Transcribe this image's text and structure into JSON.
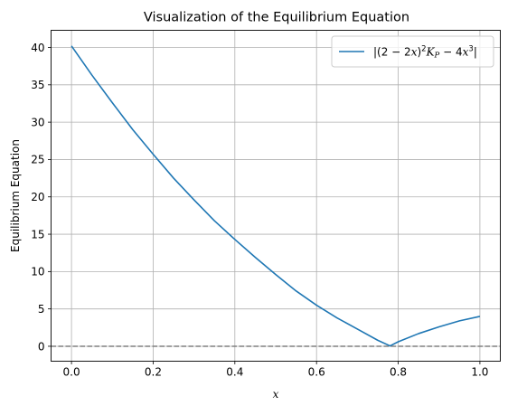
{
  "chart_data": {
    "type": "line",
    "title": "Visualization of the Equilibrium Equation",
    "xlabel": "x",
    "ylabel": "Equilibrium Equation",
    "xlim": [
      -0.05,
      1.05
    ],
    "ylim": [
      -2.0,
      42.3
    ],
    "x_ticks": [
      0.0,
      0.2,
      0.4,
      0.6,
      0.8,
      1.0
    ],
    "x_tick_labels": [
      "0.0",
      "0.2",
      "0.4",
      "0.6",
      "0.8",
      "1.0"
    ],
    "y_ticks": [
      0,
      5,
      10,
      15,
      20,
      25,
      30,
      35,
      40
    ],
    "y_tick_labels": [
      "0",
      "5",
      "10",
      "15",
      "20",
      "25",
      "30",
      "35",
      "40"
    ],
    "grid": true,
    "legend_position": "top-right",
    "series": [
      {
        "name": "|(2 − 2x)²Kₚ − 4x³|",
        "color": "#1f77b4",
        "x": [
          0.0,
          0.05,
          0.1,
          0.15,
          0.2,
          0.25,
          0.3,
          0.35,
          0.4,
          0.45,
          0.5,
          0.55,
          0.6,
          0.65,
          0.7,
          0.75,
          0.78,
          0.8,
          0.85,
          0.9,
          0.95,
          1.0
        ],
        "y": [
          40.2,
          36.3,
          32.6,
          29.0,
          25.7,
          22.5,
          19.6,
          16.8,
          14.3,
          11.9,
          9.6,
          7.4,
          5.5,
          3.8,
          2.3,
          0.8,
          0.05,
          0.6,
          1.7,
          2.6,
          3.4,
          4.0
        ]
      }
    ],
    "reference_line": {
      "y": 0,
      "color": "#808080",
      "style": "dashed"
    }
  }
}
